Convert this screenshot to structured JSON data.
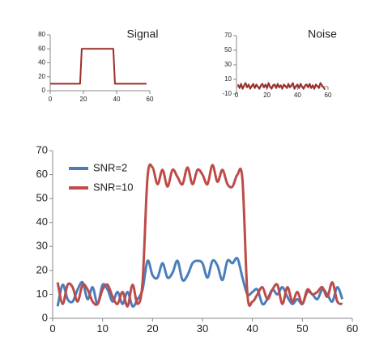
{
  "chart_data": [
    {
      "type": "line",
      "title": "Signal",
      "x": [
        0,
        18,
        19,
        38,
        39,
        58
      ],
      "series": [
        {
          "name": "Signal",
          "color": "#9b2d2a",
          "values": [
            10,
            10,
            60,
            60,
            10,
            10
          ]
        }
      ],
      "xlim": [
        0,
        60
      ],
      "xticks": [
        0,
        20,
        40,
        60
      ],
      "ylim": [
        0,
        80
      ],
      "yticks": [
        0,
        20,
        40,
        60,
        80
      ],
      "smooth": false
    },
    {
      "type": "line",
      "title": "Noise",
      "x": [
        1,
        2,
        3,
        4,
        5,
        6,
        7,
        8,
        9,
        10,
        11,
        12,
        13,
        14,
        15,
        16,
        17,
        18,
        19,
        20,
        21,
        22,
        23,
        24,
        25,
        26,
        27,
        28,
        29,
        30,
        31,
        32,
        33,
        34,
        35,
        36,
        37,
        38,
        39,
        40,
        41,
        42,
        43,
        44,
        45,
        46,
        47,
        48,
        49,
        50,
        51,
        52,
        53,
        54,
        55,
        56,
        57,
        58
      ],
      "series": [
        {
          "name": "Noise",
          "color": "#9b2d2a",
          "values": [
            3,
            -2,
            4,
            -3,
            2,
            5,
            -1,
            3,
            -3,
            1,
            4,
            -2,
            3,
            0,
            -3,
            2,
            4,
            -1,
            3,
            -2,
            5,
            0,
            -3,
            2,
            3,
            -2,
            4,
            -1,
            2,
            -3,
            3,
            1,
            -2,
            4,
            -1,
            2,
            5,
            -3,
            1,
            3,
            -2,
            4,
            0,
            -3,
            2,
            3,
            -1,
            4,
            -2,
            2,
            -3,
            3,
            1,
            -2,
            5,
            2,
            -1,
            -4
          ]
        }
      ],
      "xlim": [
        0,
        60
      ],
      "xticks": [
        0,
        20,
        40,
        60
      ],
      "ylim": [
        -10,
        70
      ],
      "yticks": [
        -10,
        10,
        30,
        50,
        70
      ],
      "smooth": false
    },
    {
      "type": "line",
      "x": [
        1,
        2,
        3,
        4,
        5,
        6,
        7,
        8,
        9,
        10,
        11,
        12,
        13,
        14,
        15,
        16,
        17,
        18,
        19,
        20,
        21,
        22,
        23,
        24,
        25,
        26,
        27,
        28,
        29,
        30,
        31,
        32,
        33,
        34,
        35,
        36,
        37,
        38,
        39,
        40,
        41,
        42,
        43,
        44,
        45,
        46,
        47,
        48,
        49,
        50,
        51,
        52,
        53,
        54,
        55,
        56,
        57,
        58
      ],
      "series": [
        {
          "name": "SNR=2",
          "color": "#4a7ebb",
          "values": [
            5,
            14,
            8,
            7,
            12,
            15,
            8,
            13,
            6,
            14,
            12,
            7,
            11,
            6,
            11,
            5,
            8,
            12,
            24,
            18,
            17,
            23,
            17,
            19,
            24,
            16,
            18,
            23,
            24,
            23,
            17,
            24,
            22,
            16,
            24,
            23,
            25,
            17,
            10,
            11,
            12,
            6,
            8,
            12,
            10,
            13,
            9,
            6,
            8,
            6,
            11,
            10,
            8,
            12,
            10,
            7,
            13,
            8
          ]
        },
        {
          "name": "SNR=10",
          "color": "#be4b48",
          "values": [
            15,
            6,
            14,
            13,
            7,
            14,
            12,
            7,
            6,
            12,
            14,
            9,
            6,
            11,
            5,
            14,
            6,
            15,
            59,
            63,
            56,
            62,
            55,
            62,
            59,
            56,
            63,
            56,
            62,
            60,
            56,
            64,
            57,
            62,
            56,
            55,
            60,
            58,
            10,
            7,
            10,
            13,
            8,
            12,
            14,
            6,
            13,
            7,
            11,
            6,
            12,
            10,
            11,
            13,
            9,
            15,
            7,
            6
          ]
        }
      ],
      "xlim": [
        0,
        60
      ],
      "xticks": [
        0,
        10,
        20,
        30,
        40,
        50,
        60
      ],
      "ylim": [
        0,
        70
      ],
      "yticks": [
        0,
        10,
        20,
        30,
        40,
        50,
        60,
        70
      ],
      "smooth": true,
      "legend": "upper left"
    }
  ]
}
